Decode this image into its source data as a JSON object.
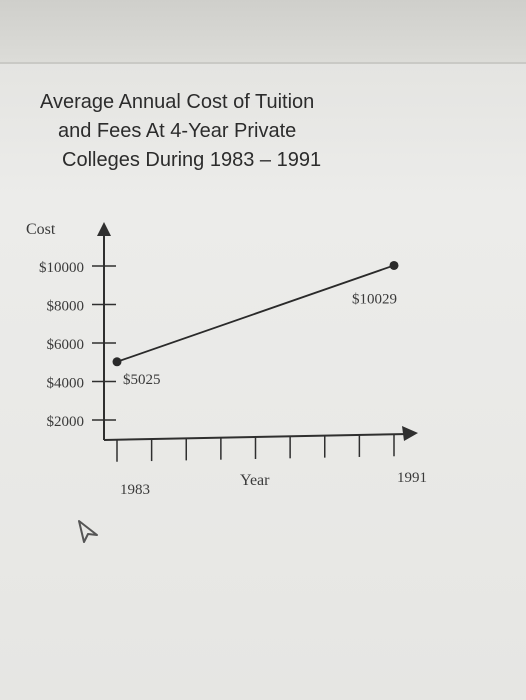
{
  "chart_data": {
    "type": "line",
    "title_lines": [
      "Average Annual Cost of Tuition",
      "and Fees At 4-Year Private",
      "Colleges During 1983 – 1991"
    ],
    "ylabel": "Cost",
    "xlabel": "Year",
    "y_ticks": [
      {
        "value": 2000,
        "label": "$2000"
      },
      {
        "value": 4000,
        "label": "$4000"
      },
      {
        "value": 6000,
        "label": "$6000"
      },
      {
        "value": 8000,
        "label": "$8000"
      },
      {
        "value": 10000,
        "label": "$10000"
      }
    ],
    "x_ticks": [
      1983,
      1984,
      1985,
      1986,
      1987,
      1988,
      1989,
      1990,
      1991
    ],
    "x_tick_labels": [
      {
        "value": 1983,
        "label": "1983"
      },
      {
        "value": 1991,
        "label": "1991"
      }
    ],
    "xlim": [
      1983,
      1991
    ],
    "ylim": [
      0,
      11000
    ],
    "points": [
      {
        "x": 1983,
        "y": 5025,
        "label": "$5025"
      },
      {
        "x": 1991,
        "y": 10029,
        "label": "$10029"
      }
    ],
    "line_color": "#2a2a2a",
    "grid": false
  }
}
